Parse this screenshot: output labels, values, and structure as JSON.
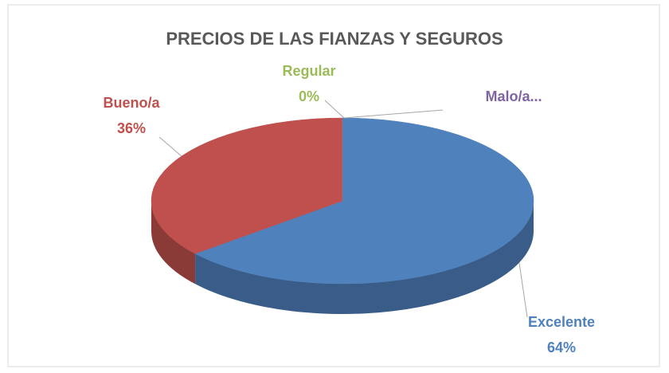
{
  "chart_data": {
    "type": "pie3d",
    "title": "PRECIOS DE LAS FIANZAS Y SEGUROS",
    "categories": [
      "Excelente",
      "Bueno/a",
      "Regular",
      "Malo/a..."
    ],
    "values": [
      64,
      36,
      0,
      0
    ],
    "value_labels": [
      "64%",
      "36%",
      "0%",
      null
    ],
    "colors": [
      "#4f81bd",
      "#c0504d",
      "#9bbb59",
      "#8064a2"
    ]
  }
}
